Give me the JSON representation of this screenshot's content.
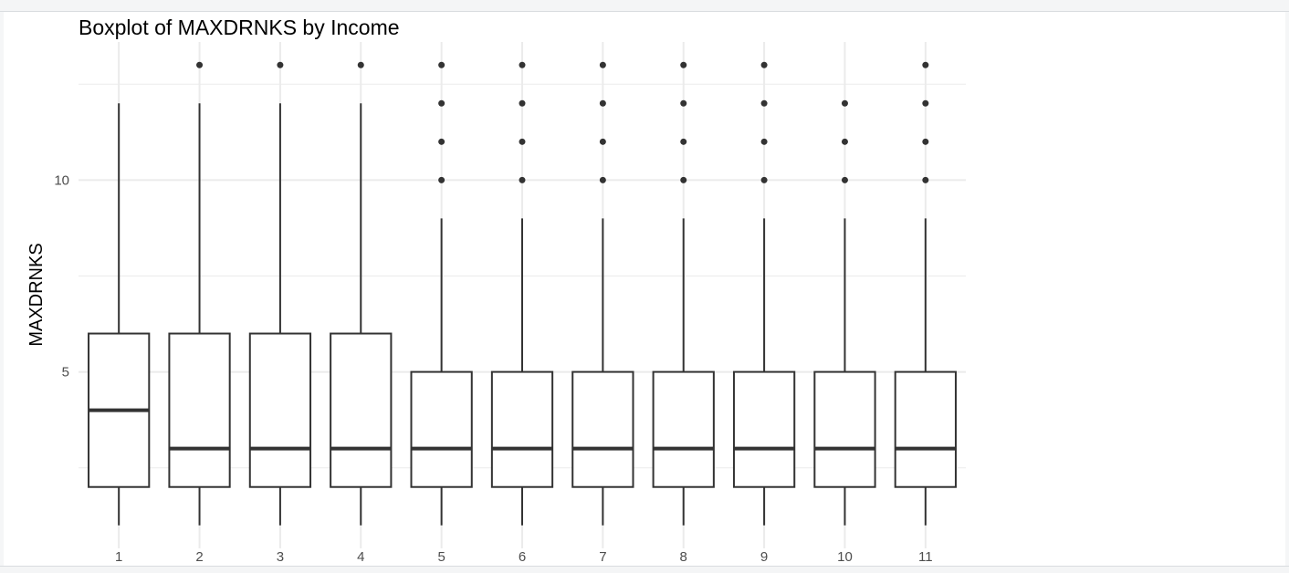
{
  "chart_data": {
    "type": "boxplot",
    "title": "Boxplot of MAXDRNKS by Income",
    "xlabel": "",
    "ylabel": "MAXDRNKS",
    "categories": [
      "1",
      "2",
      "3",
      "4",
      "5",
      "6",
      "7",
      "8",
      "9",
      "10",
      "11"
    ],
    "ylim": [
      0.4,
      13.6
    ],
    "yticks": [
      5,
      10
    ],
    "y_tick_labels": [
      "5",
      "10"
    ],
    "grid": true,
    "legend": "none",
    "boxes": [
      {
        "category": "1",
        "whisker_low": 1,
        "q1": 2,
        "median": 4,
        "q3": 6,
        "whisker_high": 12,
        "outliers": []
      },
      {
        "category": "2",
        "whisker_low": 1,
        "q1": 2,
        "median": 3,
        "q3": 6,
        "whisker_high": 12,
        "outliers": [
          13
        ]
      },
      {
        "category": "3",
        "whisker_low": 1,
        "q1": 2,
        "median": 3,
        "q3": 6,
        "whisker_high": 12,
        "outliers": [
          13
        ]
      },
      {
        "category": "4",
        "whisker_low": 1,
        "q1": 2,
        "median": 3,
        "q3": 6,
        "whisker_high": 12,
        "outliers": [
          13
        ]
      },
      {
        "category": "5",
        "whisker_low": 1,
        "q1": 2,
        "median": 3,
        "q3": 5,
        "whisker_high": 9,
        "outliers": [
          10,
          11,
          12,
          13
        ]
      },
      {
        "category": "6",
        "whisker_low": 1,
        "q1": 2,
        "median": 3,
        "q3": 5,
        "whisker_high": 9,
        "outliers": [
          10,
          11,
          12,
          13
        ]
      },
      {
        "category": "7",
        "whisker_low": 1,
        "q1": 2,
        "median": 3,
        "q3": 5,
        "whisker_high": 9,
        "outliers": [
          10,
          11,
          12,
          13
        ]
      },
      {
        "category": "8",
        "whisker_low": 1,
        "q1": 2,
        "median": 3,
        "q3": 5,
        "whisker_high": 9,
        "outliers": [
          10,
          11,
          12,
          13
        ]
      },
      {
        "category": "9",
        "whisker_low": 1,
        "q1": 2,
        "median": 3,
        "q3": 5,
        "whisker_high": 9,
        "outliers": [
          10,
          11,
          12,
          13
        ]
      },
      {
        "category": "10",
        "whisker_low": 1,
        "q1": 2,
        "median": 3,
        "q3": 5,
        "whisker_high": 9,
        "outliers": [
          10,
          11,
          12
        ]
      },
      {
        "category": "11",
        "whisker_low": 1,
        "q1": 2,
        "median": 3,
        "q3": 5,
        "whisker_high": 9,
        "outliers": [
          10,
          11,
          12,
          13
        ]
      }
    ],
    "colors": {
      "box_line": "#333333",
      "grid": "#ebebeb",
      "outlier": "#333333"
    }
  }
}
